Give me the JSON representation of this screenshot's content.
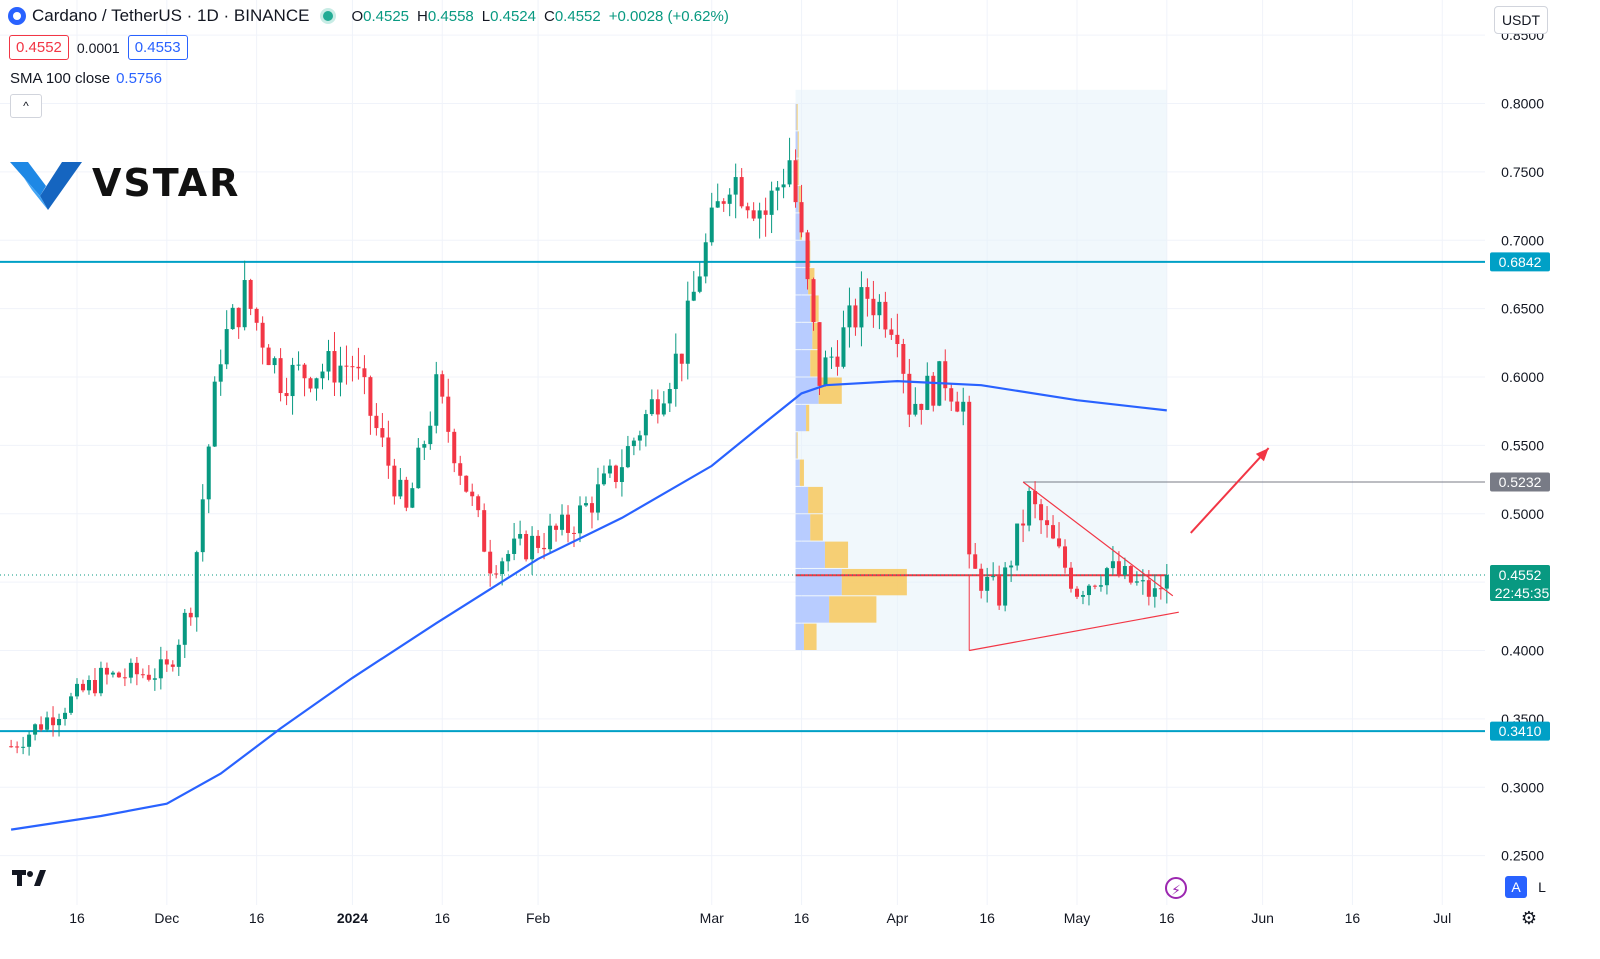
{
  "header": {
    "title": "Cardano / TetherUS · 1D · BINANCE",
    "ohlc": [
      {
        "k": "O",
        "v": "0.4525"
      },
      {
        "k": "H",
        "v": "0.4558"
      },
      {
        "k": "L",
        "v": "0.4524"
      },
      {
        "k": "C",
        "v": "0.4552"
      }
    ],
    "change": "+0.0028 (+0.62%)",
    "bid": "0.4552",
    "spread": "0.0001",
    "ask": "0.4553",
    "sma_label": "SMA 100 close",
    "sma_value": "0.5756",
    "collapse_glyph": "^",
    "currency": "USDT",
    "brand": "VSTAR"
  },
  "controls": {
    "auto": "A",
    "log": "L"
  },
  "icons": [
    "symbol-icon",
    "live-status-icon",
    "collapse-icon",
    "vstar-logo-icon",
    "tradingview-logo-icon",
    "flash-icon",
    "gear-icon"
  ],
  "colors": {
    "up": "#089981",
    "down": "#f23645",
    "sma": "#2962ff",
    "level": "#00a0c6",
    "profile_up": "#aec4ff",
    "profile_down": "#f7c85c",
    "range_box": "#e3f2fa"
  },
  "chart_data": {
    "type": "candlestick",
    "y_ticks": [
      "0.2500",
      "0.3000",
      "0.3500",
      "0.4000",
      "0.4500",
      "0.5000",
      "0.5500",
      "0.6000",
      "0.6500",
      "0.7000",
      "0.7500",
      "0.8000",
      "0.8500"
    ],
    "ylim": [
      0.235,
      0.865
    ],
    "x_ticks": [
      {
        "label": "16",
        "date": "2023-11-16"
      },
      {
        "label": "Dec",
        "date": "2023-12-01"
      },
      {
        "label": "16",
        "date": "2023-12-16"
      },
      {
        "label": "2024",
        "date": "2024-01-01"
      },
      {
        "label": "16",
        "date": "2024-01-16"
      },
      {
        "label": "Feb",
        "date": "2024-02-01"
      },
      {
        "label": "Mar",
        "date": "2024-03-01"
      },
      {
        "label": "16",
        "date": "2024-03-16"
      },
      {
        "label": "Apr",
        "date": "2024-04-01"
      },
      {
        "label": "16",
        "date": "2024-04-16"
      },
      {
        "label": "May",
        "date": "2024-05-01"
      },
      {
        "label": "16",
        "date": "2024-05-16"
      },
      {
        "label": "Jun",
        "date": "2024-06-01"
      },
      {
        "label": "16",
        "date": "2024-06-16"
      },
      {
        "label": "Jul",
        "date": "2024-07-01"
      }
    ],
    "x_range": [
      "2023-11-05",
      "2024-07-06"
    ],
    "price_key_points": [
      {
        "date": "2023-11-05",
        "close": 0.33
      },
      {
        "date": "2023-11-20",
        "close": 0.38
      },
      {
        "date": "2023-12-01",
        "close": 0.385
      },
      {
        "date": "2023-12-05",
        "close": 0.435
      },
      {
        "date": "2023-12-08",
        "close": 0.55
      },
      {
        "date": "2023-12-10",
        "close": 0.62
      },
      {
        "date": "2023-12-14",
        "close": 0.66
      },
      {
        "date": "2023-12-20",
        "close": 0.6
      },
      {
        "date": "2024-01-01",
        "close": 0.61
      },
      {
        "date": "2024-01-10",
        "close": 0.5
      },
      {
        "date": "2024-01-15",
        "close": 0.59
      },
      {
        "date": "2024-01-24",
        "close": 0.465
      },
      {
        "date": "2024-02-06",
        "close": 0.49
      },
      {
        "date": "2024-02-14",
        "close": 0.53
      },
      {
        "date": "2024-02-25",
        "close": 0.62
      },
      {
        "date": "2024-02-28",
        "close": 0.68
      },
      {
        "date": "2024-03-04",
        "close": 0.75
      },
      {
        "date": "2024-03-10",
        "close": 0.72
      },
      {
        "date": "2024-03-14",
        "close": 0.76
      },
      {
        "date": "2024-03-19",
        "close": 0.6
      },
      {
        "date": "2024-03-27",
        "close": 0.66
      },
      {
        "date": "2024-04-01",
        "close": 0.64
      },
      {
        "date": "2024-04-03",
        "close": 0.58
      },
      {
        "date": "2024-04-09",
        "close": 0.6
      },
      {
        "date": "2024-04-12",
        "close": 0.58
      },
      {
        "date": "2024-04-13",
        "close": 0.46
      },
      {
        "date": "2024-04-18",
        "close": 0.44
      },
      {
        "date": "2024-04-23",
        "close": 0.51
      },
      {
        "date": "2024-05-01",
        "close": 0.445
      },
      {
        "date": "2024-05-06",
        "close": 0.46
      },
      {
        "date": "2024-05-14",
        "close": 0.44
      },
      {
        "date": "2024-05-16",
        "close": 0.4552
      }
    ],
    "sma": {
      "name": "SMA 100 close",
      "points": [
        {
          "date": "2023-11-05",
          "value": 0.269
        },
        {
          "date": "2023-11-20",
          "value": 0.279
        },
        {
          "date": "2023-12-01",
          "value": 0.288
        },
        {
          "date": "2023-12-10",
          "value": 0.31
        },
        {
          "date": "2023-12-20",
          "value": 0.343
        },
        {
          "date": "2024-01-01",
          "value": 0.38
        },
        {
          "date": "2024-01-15",
          "value": 0.42
        },
        {
          "date": "2024-02-01",
          "value": 0.467
        },
        {
          "date": "2024-02-15",
          "value": 0.497
        },
        {
          "date": "2024-03-01",
          "value": 0.535
        },
        {
          "date": "2024-03-10",
          "value": 0.567
        },
        {
          "date": "2024-03-16",
          "value": 0.588
        },
        {
          "date": "2024-03-20",
          "value": 0.594
        },
        {
          "date": "2024-04-01",
          "value": 0.597
        },
        {
          "date": "2024-04-15",
          "value": 0.594
        },
        {
          "date": "2024-05-01",
          "value": 0.583
        },
        {
          "date": "2024-05-16",
          "value": 0.5756
        }
      ]
    },
    "levels": [
      {
        "value": 0.6842,
        "label": "0.6842"
      },
      {
        "value": 0.341,
        "label": "0.3410"
      }
    ],
    "resistance": {
      "value": 0.5232,
      "label": "0.5232"
    },
    "last_price": {
      "value": 0.4552,
      "label": "0.4552",
      "countdown": "22:45:35"
    },
    "poc_value": 0.455,
    "volume_profile": {
      "date_range": [
        "2024-03-15",
        "2024-05-16"
      ],
      "price_range": [
        0.4,
        0.81
      ],
      "rows": [
        {
          "price": 0.41,
          "up": 8,
          "down": 12
        },
        {
          "price": 0.43,
          "up": 32,
          "down": 45
        },
        {
          "price": 0.45,
          "up": 44,
          "down": 62
        },
        {
          "price": 0.47,
          "up": 28,
          "down": 22
        },
        {
          "price": 0.49,
          "up": 14,
          "down": 12
        },
        {
          "price": 0.51,
          "up": 12,
          "down": 14
        },
        {
          "price": 0.53,
          "up": 4,
          "down": 4
        },
        {
          "price": 0.55,
          "up": 1,
          "down": 1
        },
        {
          "price": 0.57,
          "up": 10,
          "down": 3
        },
        {
          "price": 0.59,
          "up": 22,
          "down": 22
        },
        {
          "price": 0.61,
          "up": 14,
          "down": 8
        },
        {
          "price": 0.63,
          "up": 16,
          "down": 8
        },
        {
          "price": 0.65,
          "up": 14,
          "down": 8
        },
        {
          "price": 0.67,
          "up": 12,
          "down": 6
        },
        {
          "price": 0.69,
          "up": 10,
          "down": 4
        },
        {
          "price": 0.71,
          "up": 4,
          "down": 2
        },
        {
          "price": 0.73,
          "up": 3,
          "down": 2
        },
        {
          "price": 0.75,
          "up": 2,
          "down": 1
        },
        {
          "price": 0.77,
          "up": 2,
          "down": 1
        },
        {
          "price": 0.79,
          "up": 1,
          "down": 1
        }
      ]
    },
    "triangle": {
      "upper": [
        {
          "date": "2024-04-22",
          "value": 0.5232
        },
        {
          "date": "2024-05-17",
          "value": 0.44
        }
      ],
      "lower": [
        {
          "date": "2024-04-13",
          "value": 0.4
        },
        {
          "date": "2024-05-18",
          "value": 0.428
        }
      ]
    },
    "arrow": {
      "from": {
        "date": "2024-05-20",
        "value": 0.486
      },
      "to": {
        "date": "2024-06-02",
        "value": 0.548
      }
    }
  }
}
